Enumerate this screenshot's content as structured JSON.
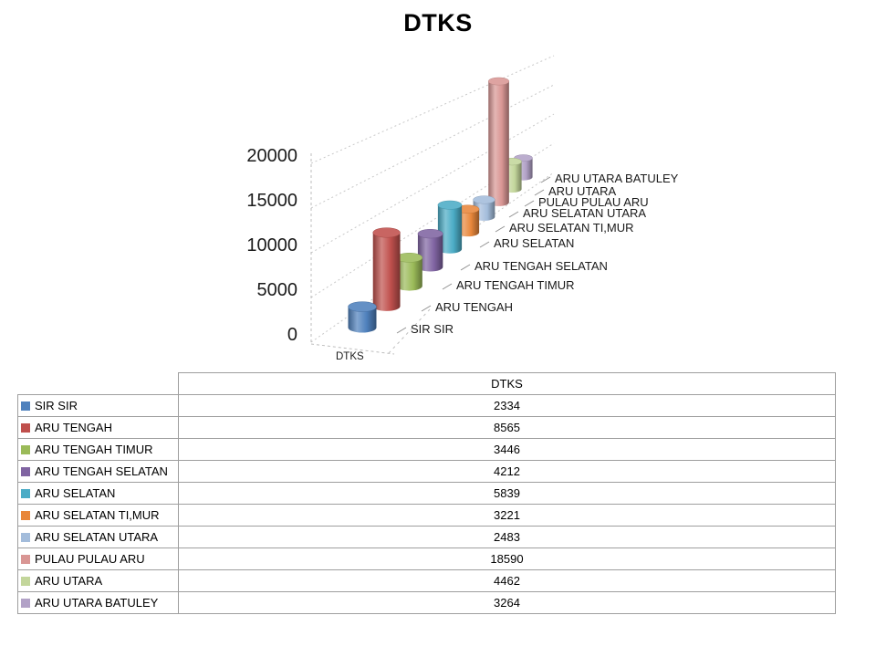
{
  "chart_data": {
    "type": "bar",
    "subtype": "3d-cylinder",
    "title": "DTKS",
    "series_name": "DTKS",
    "xlabel": "DTKS",
    "ylabel": "",
    "ylim": [
      0,
      20000
    ],
    "y_ticks": [
      0,
      5000,
      10000,
      15000,
      20000
    ],
    "grid": true,
    "legend_position": "table-left-column",
    "categories": [
      "SIR SIR",
      "ARU TENGAH",
      "ARU TENGAH TIMUR",
      "ARU TENGAH SELATAN",
      "ARU SELATAN",
      "ARU SELATAN TI,MUR",
      "ARU SELATAN UTARA",
      "PULAU PULAU ARU",
      "ARU UTARA",
      "ARU UTARA BATULEY"
    ],
    "values": [
      2334,
      8565,
      3446,
      4212,
      5839,
      3221,
      2483,
      18590,
      4462,
      3264
    ],
    "colors": [
      "#4F81BD",
      "#C0504D",
      "#9BBB59",
      "#8064A2",
      "#4BACC6",
      "#E8873B",
      "#A3BCDB",
      "#D99694",
      "#C3D69B",
      "#B2A2C7"
    ]
  },
  "table": {
    "header": "DTKS"
  }
}
